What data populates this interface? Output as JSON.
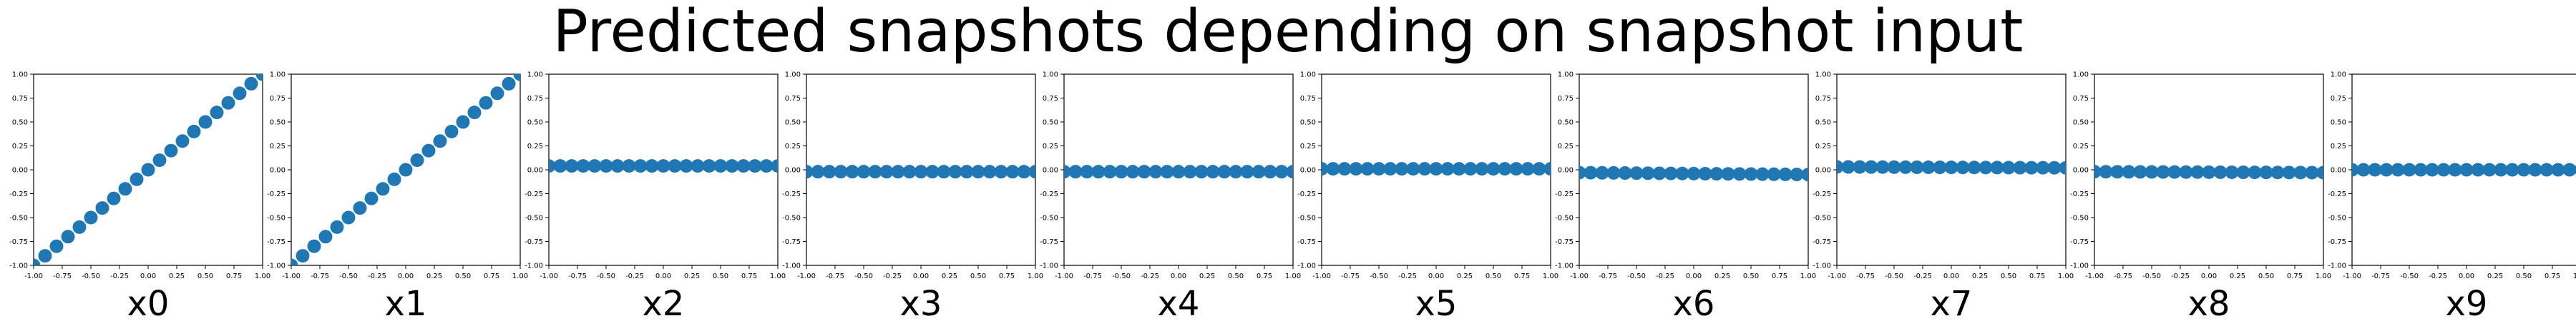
{
  "title": "Predicted snapshots depending on snapshot input",
  "colors": {
    "marker": "#1f77b4",
    "axes": "#000000",
    "background": "#ffffff"
  },
  "chart_data": [
    {
      "type": "scatter",
      "xlabel": "x0",
      "xlim": [
        -1,
        1
      ],
      "ylim": [
        -1,
        1
      ],
      "grid": false,
      "xticks": [
        "-1.00",
        "-0.75",
        "-0.50",
        "-0.25",
        "0.00",
        "0.25",
        "0.50",
        "0.75",
        "1.00"
      ],
      "yticks": [
        "-1.00",
        "-0.75",
        "-0.50",
        "-0.25",
        "0.00",
        "0.25",
        "0.50",
        "0.75",
        "1.00"
      ],
      "x_start": -1,
      "x_end": 1,
      "n_points": 21,
      "y_start": -1,
      "y_end": 1
    },
    {
      "type": "scatter",
      "xlabel": "x1",
      "xlim": [
        -1,
        1
      ],
      "ylim": [
        -1,
        1
      ],
      "grid": false,
      "xticks": [
        "-1.00",
        "-0.75",
        "-0.50",
        "-0.25",
        "0.00",
        "0.25",
        "0.50",
        "0.75",
        "1.00"
      ],
      "yticks": [
        "-1.00",
        "-0.75",
        "-0.50",
        "-0.25",
        "0.00",
        "0.25",
        "0.50",
        "0.75",
        "1.00"
      ],
      "x_start": -1,
      "x_end": 1,
      "n_points": 21,
      "y_start": -1,
      "y_end": 1
    },
    {
      "type": "scatter",
      "xlabel": "x2",
      "xlim": [
        -1,
        1
      ],
      "ylim": [
        -1,
        1
      ],
      "grid": false,
      "xticks": [
        "-1.00",
        "-0.75",
        "-0.50",
        "-0.25",
        "0.00",
        "0.25",
        "0.50",
        "0.75",
        "1.00"
      ],
      "yticks": [
        "-1.00",
        "-0.75",
        "-0.50",
        "-0.25",
        "0.00",
        "0.25",
        "0.50",
        "0.75",
        "1.00"
      ],
      "x_start": -1,
      "x_end": 1,
      "n_points": 21,
      "y_start": 0.04,
      "y_end": 0.04
    },
    {
      "type": "scatter",
      "xlabel": "x3",
      "xlim": [
        -1,
        1
      ],
      "ylim": [
        -1,
        1
      ],
      "grid": false,
      "xticks": [
        "-1.00",
        "-0.75",
        "-0.50",
        "-0.25",
        "0.00",
        "0.25",
        "0.50",
        "0.75",
        "1.00"
      ],
      "yticks": [
        "-1.00",
        "-0.75",
        "-0.50",
        "-0.25",
        "0.00",
        "0.25",
        "0.50",
        "0.75",
        "1.00"
      ],
      "x_start": -1,
      "x_end": 1,
      "n_points": 21,
      "y_start": -0.02,
      "y_end": -0.02
    },
    {
      "type": "scatter",
      "xlabel": "x4",
      "xlim": [
        -1,
        1
      ],
      "ylim": [
        -1,
        1
      ],
      "grid": false,
      "xticks": [
        "-1.00",
        "-0.75",
        "-0.50",
        "-0.25",
        "0.00",
        "0.25",
        "0.50",
        "0.75",
        "1.00"
      ],
      "yticks": [
        "-1.00",
        "-0.75",
        "-0.50",
        "-0.25",
        "0.00",
        "0.25",
        "0.50",
        "0.75",
        "1.00"
      ],
      "x_start": -1,
      "x_end": 1,
      "n_points": 21,
      "y_start": -0.02,
      "y_end": -0.02
    },
    {
      "type": "scatter",
      "xlabel": "x5",
      "xlim": [
        -1,
        1
      ],
      "ylim": [
        -1,
        1
      ],
      "grid": false,
      "xticks": [
        "-1.00",
        "-0.75",
        "-0.50",
        "-0.25",
        "0.00",
        "0.25",
        "0.50",
        "0.75",
        "1.00"
      ],
      "yticks": [
        "-1.00",
        "-0.75",
        "-0.50",
        "-0.25",
        "0.00",
        "0.25",
        "0.50",
        "0.75",
        "1.00"
      ],
      "x_start": -1,
      "x_end": 1,
      "n_points": 21,
      "y_start": 0.01,
      "y_end": 0.01
    },
    {
      "type": "scatter",
      "xlabel": "x6",
      "xlim": [
        -1,
        1
      ],
      "ylim": [
        -1,
        1
      ],
      "grid": false,
      "xticks": [
        "-1.00",
        "-0.75",
        "-0.50",
        "-0.25",
        "0.00",
        "0.25",
        "0.50",
        "0.75",
        "1.00"
      ],
      "yticks": [
        "-1.00",
        "-0.75",
        "-0.50",
        "-0.25",
        "0.00",
        "0.25",
        "0.50",
        "0.75",
        "1.00"
      ],
      "x_start": -1,
      "x_end": 1,
      "n_points": 21,
      "y_start": -0.03,
      "y_end": -0.05
    },
    {
      "type": "scatter",
      "xlabel": "x7",
      "xlim": [
        -1,
        1
      ],
      "ylim": [
        -1,
        1
      ],
      "grid": false,
      "xticks": [
        "-1.00",
        "-0.75",
        "-0.50",
        "-0.25",
        "0.00",
        "0.25",
        "0.50",
        "0.75",
        "1.00"
      ],
      "yticks": [
        "-1.00",
        "-0.75",
        "-0.50",
        "-0.25",
        "0.00",
        "0.25",
        "0.50",
        "0.75",
        "1.00"
      ],
      "x_start": -1,
      "x_end": 1,
      "n_points": 21,
      "y_start": 0.03,
      "y_end": 0.02
    },
    {
      "type": "scatter",
      "xlabel": "x8",
      "xlim": [
        -1,
        1
      ],
      "ylim": [
        -1,
        1
      ],
      "grid": false,
      "xticks": [
        "-1.00",
        "-0.75",
        "-0.50",
        "-0.25",
        "0.00",
        "0.25",
        "0.50",
        "0.75",
        "1.00"
      ],
      "yticks": [
        "-1.00",
        "-0.75",
        "-0.50",
        "-0.25",
        "0.00",
        "0.25",
        "0.50",
        "0.75",
        "1.00"
      ],
      "x_start": -1,
      "x_end": 1,
      "n_points": 21,
      "y_start": -0.02,
      "y_end": -0.03
    },
    {
      "type": "scatter",
      "xlabel": "x9",
      "xlim": [
        -1,
        1
      ],
      "ylim": [
        -1,
        1
      ],
      "grid": false,
      "xticks": [
        "-1.00",
        "-0.75",
        "-0.50",
        "-0.25",
        "0.00",
        "0.25",
        "0.50",
        "0.75",
        "1.00"
      ],
      "yticks": [
        "-1.00",
        "-0.75",
        "-0.50",
        "-0.25",
        "0.00",
        "0.25",
        "0.50",
        "0.75",
        "1.00"
      ],
      "x_start": -1,
      "x_end": 1,
      "n_points": 21,
      "y_start": 0.0,
      "y_end": 0.0
    }
  ]
}
